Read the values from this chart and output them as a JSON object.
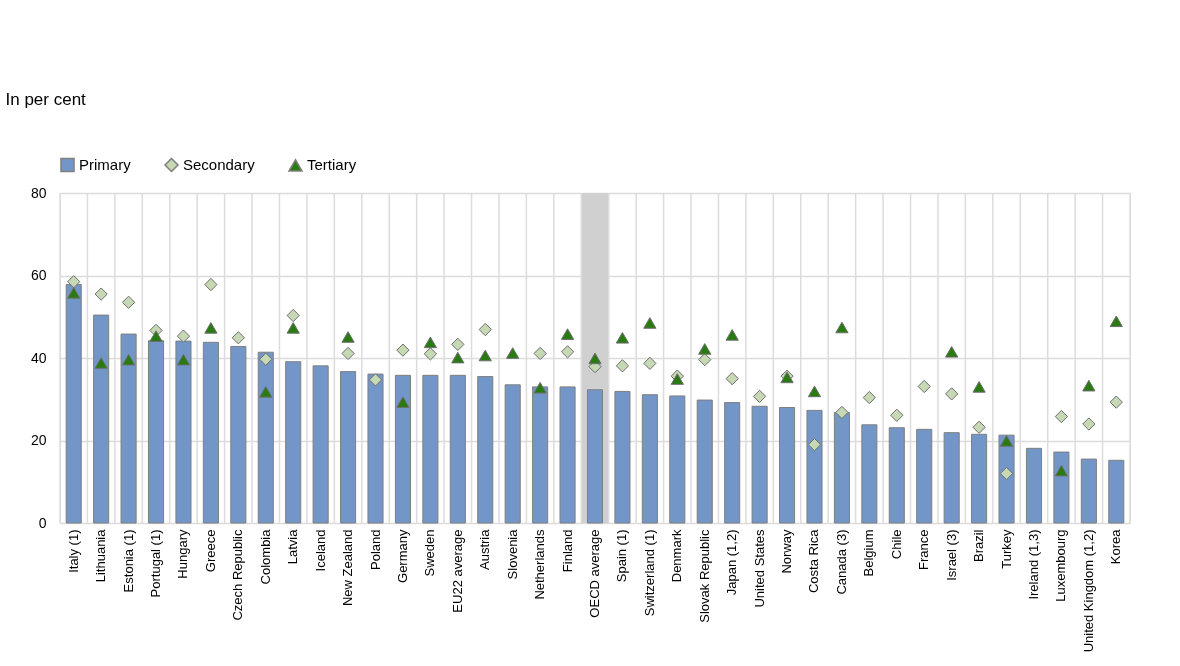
{
  "chart_data": {
    "type": "bar",
    "ylabel": "In per cent",
    "categories": [
      "Italy (1)",
      "Lithuania",
      "Estonia (1)",
      "Portugal (1)",
      "Hungary",
      "Greece",
      "Czech Republic",
      "Colombia",
      "Latvia",
      "Iceland",
      "New Zealand",
      "Poland",
      "Germany",
      "Sweden",
      "EU22 average",
      "Austria",
      "Slovenia",
      "Netherlands",
      "Finland",
      "OECD average",
      "Spain (1)",
      "Switzerland (1)",
      "Denmark",
      "Slovak Republic",
      "Japan (1,2)",
      "United States",
      "Norway",
      "Costa Rica",
      "Canada (3)",
      "Belgium",
      "Chile",
      "France",
      "Israel (3)",
      "Brazil",
      "Turkey",
      "Ireland (1,3)",
      "Luxembourg",
      "United Kingdom (1,2)",
      "Korea"
    ],
    "series": [
      {
        "name": "Primary",
        "color": "#7396c9",
        "values": [
          57.8,
          50.4,
          45.8,
          44.2,
          44.1,
          43.8,
          42.8,
          41.4,
          39.1,
          38.1,
          36.7,
          36.1,
          35.8,
          35.8,
          35.8,
          35.5,
          33.5,
          33.0,
          33.0,
          32.3,
          31.9,
          31.1,
          30.8,
          29.8,
          29.2,
          28.3,
          28.0,
          27.3,
          26.8,
          23.8,
          23.1,
          22.7,
          21.9,
          21.5,
          21.3,
          18.1,
          17.2,
          15.5,
          15.2
        ]
      },
      {
        "name": "Secondary",
        "type": "scatter",
        "marker": "diamond",
        "color": "#c6d9b4",
        "values": [
          58.5,
          55.5,
          53.5,
          46.7,
          45.3,
          57.8,
          44.9,
          39.7,
          50.3,
          null,
          41.1,
          34.7,
          41.9,
          41.0,
          43.3,
          46.9,
          null,
          41.1,
          41.5,
          37.9,
          38.1,
          38.7,
          35.6,
          39.6,
          35.0,
          30.7,
          35.6,
          19.0,
          26.8,
          30.4,
          26.1,
          33.1,
          31.3,
          23.2,
          12.0,
          null,
          25.8,
          24.0,
          29.3
        ]
      },
      {
        "name": "Tertiary",
        "type": "scatter",
        "marker": "triangle",
        "color": "#2a7a12",
        "values": [
          55.8,
          38.8,
          39.6,
          45.3,
          39.6,
          47.3,
          null,
          31.8,
          47.3,
          null,
          45.1,
          null,
          29.3,
          43.8,
          40.1,
          40.6,
          41.2,
          32.8,
          45.8,
          39.9,
          44.9,
          48.5,
          34.9,
          42.2,
          45.6,
          null,
          35.3,
          31.9,
          47.4,
          null,
          null,
          null,
          41.5,
          33.0,
          19.9,
          null,
          12.7,
          33.3,
          48.9
        ]
      }
    ],
    "ylim": [
      0,
      80
    ],
    "yticks": [
      0,
      20,
      40,
      60,
      80
    ],
    "grid": true,
    "legend": "top",
    "bands": [
      {
        "axis": "x",
        "from": "OECD average",
        "to": "OECD average",
        "color": "#d0d0d0"
      }
    ]
  }
}
